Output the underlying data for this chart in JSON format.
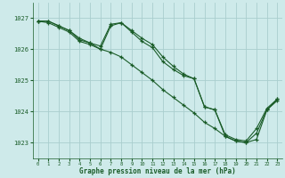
{
  "title": "Graphe pression niveau de la mer (hPa)",
  "bg_color": "#ceeaea",
  "grid_color": "#aacece",
  "line_color": "#1a5c28",
  "xlim": [
    -0.5,
    23.5
  ],
  "ylim": [
    1022.5,
    1027.5
  ],
  "yticks": [
    1023,
    1024,
    1025,
    1026,
    1027
  ],
  "xticks": [
    0,
    1,
    2,
    3,
    4,
    5,
    6,
    7,
    8,
    9,
    10,
    11,
    12,
    13,
    14,
    15,
    16,
    17,
    18,
    19,
    20,
    21,
    22,
    23
  ],
  "series1_x": [
    0,
    1,
    2,
    3,
    4,
    5,
    6,
    7,
    8,
    9,
    10,
    11,
    12,
    13,
    14,
    15,
    16,
    17,
    18,
    19,
    20,
    21,
    22,
    23
  ],
  "series1_y": [
    1026.9,
    1026.9,
    1026.75,
    1026.6,
    1026.3,
    1026.2,
    1026.1,
    1026.8,
    1026.85,
    1026.6,
    1026.35,
    1026.15,
    1025.75,
    1025.45,
    1025.2,
    1025.05,
    1024.15,
    1024.05,
    1023.2,
    1023.05,
    1023.0,
    1023.3,
    1024.05,
    1024.35
  ],
  "series2_x": [
    0,
    1,
    2,
    3,
    4,
    5,
    6,
    7,
    8,
    9,
    10,
    11,
    12,
    13,
    14,
    15,
    16,
    17,
    18,
    19,
    20,
    21,
    22,
    23
  ],
  "series2_y": [
    1026.9,
    1026.85,
    1026.7,
    1026.55,
    1026.25,
    1026.15,
    1026.0,
    1026.75,
    1026.85,
    1026.55,
    1026.25,
    1026.05,
    1025.6,
    1025.35,
    1025.15,
    1025.05,
    1024.15,
    1024.05,
    1023.25,
    1023.1,
    1023.05,
    1023.45,
    1024.1,
    1024.4
  ],
  "series3_x": [
    0,
    1,
    2,
    3,
    4,
    5,
    6,
    7,
    8,
    9,
    10,
    11,
    12,
    13,
    14,
    15,
    16,
    17,
    18,
    19,
    20,
    21,
    22,
    23
  ],
  "series3_y": [
    1026.9,
    1026.9,
    1026.75,
    1026.6,
    1026.35,
    1026.2,
    1026.0,
    1025.9,
    1025.75,
    1025.5,
    1025.25,
    1025.0,
    1024.7,
    1024.45,
    1024.2,
    1023.95,
    1023.65,
    1023.45,
    1023.2,
    1023.05,
    1023.0,
    1023.1,
    1024.05,
    1024.4
  ]
}
